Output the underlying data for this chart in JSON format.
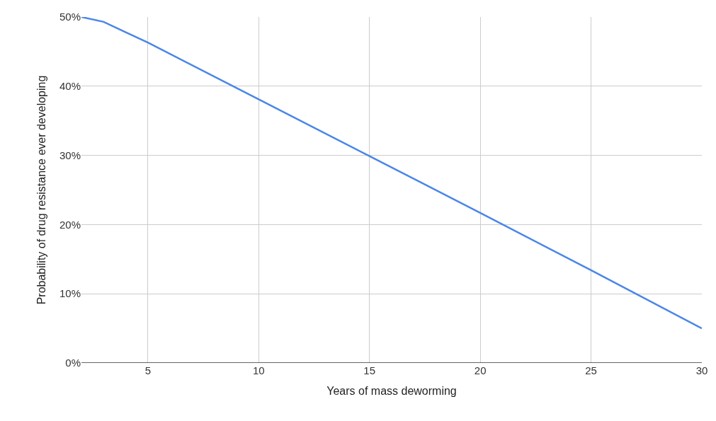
{
  "chart_data": {
    "type": "line",
    "xlabel": "Years of mass deworming",
    "ylabel": "Probability of drug resistance ever developing",
    "x": [
      2,
      3,
      4,
      5,
      10,
      15,
      20,
      25,
      30
    ],
    "series": [
      {
        "color": "#4a86e8",
        "values": [
          50,
          49.3,
          47.8,
          46.3,
          38.1,
          29.9,
          21.7,
          13.4,
          5.0
        ]
      }
    ],
    "xlim": [
      2,
      30
    ],
    "xticks": [
      5,
      10,
      15,
      20,
      25,
      30
    ],
    "ylim": [
      0,
      50
    ],
    "yticks": [
      {
        "value": 0,
        "label": "0%"
      },
      {
        "value": 10,
        "label": "10%"
      },
      {
        "value": 20,
        "label": "20%"
      },
      {
        "value": 30,
        "label": "30%"
      },
      {
        "value": 40,
        "label": "40%"
      },
      {
        "value": 50,
        "label": "50%"
      }
    ],
    "grid": true,
    "marker": "none",
    "line_style": "solid"
  }
}
